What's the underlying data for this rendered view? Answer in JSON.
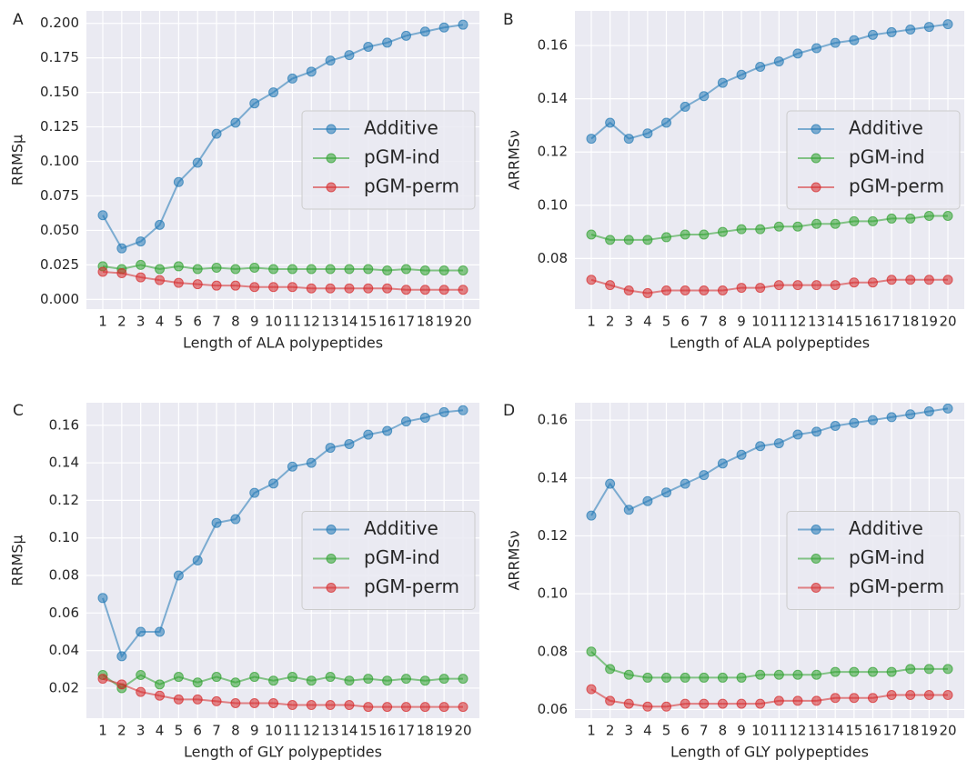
{
  "chart_data": [
    {
      "type": "line",
      "panel_label": "A",
      "xlabel": "Length of ALA polypeptides",
      "ylabel": "RRMSμ",
      "categories": [
        "1",
        "2",
        "3",
        "4",
        "5",
        "6",
        "7",
        "8",
        "9",
        "10",
        "11",
        "12",
        "13",
        "14",
        "15",
        "16",
        "17",
        "18",
        "19",
        "20"
      ],
      "series": [
        {
          "name": "Additive",
          "color": "#1f77b4",
          "values": [
            0.061,
            0.037,
            0.042,
            0.054,
            0.085,
            0.099,
            0.12,
            0.128,
            0.142,
            0.15,
            0.16,
            0.165,
            0.173,
            0.177,
            0.183,
            0.186,
            0.191,
            0.194,
            0.197,
            0.199
          ]
        },
        {
          "name": "pGM-ind",
          "color": "#2ca02c",
          "values": [
            0.024,
            0.022,
            0.025,
            0.022,
            0.024,
            0.022,
            0.023,
            0.022,
            0.023,
            0.022,
            0.022,
            0.022,
            0.022,
            0.022,
            0.022,
            0.021,
            0.022,
            0.021,
            0.021,
            0.021
          ]
        },
        {
          "name": "pGM-perm",
          "color": "#d62728",
          "values": [
            0.02,
            0.019,
            0.016,
            0.014,
            0.012,
            0.011,
            0.01,
            0.01,
            0.009,
            0.009,
            0.009,
            0.008,
            0.008,
            0.008,
            0.008,
            0.008,
            0.007,
            0.007,
            0.007,
            0.007
          ]
        }
      ],
      "ylim": [
        -0.007,
        0.209
      ],
      "yticks": [
        {
          "value": 0,
          "label": "0.000"
        },
        0.025,
        {
          "value": 0.05,
          "label": "0.050"
        },
        0.075,
        {
          "value": 0.1,
          "label": "0.100"
        },
        0.125,
        {
          "value": 0.15,
          "label": "0.150"
        },
        0.175,
        {
          "value": 0.2,
          "label": "0.200"
        }
      ],
      "grid": true,
      "legend": "center right"
    },
    {
      "type": "line",
      "panel_label": "B",
      "xlabel": "Length of ALA polypeptides",
      "ylabel": "ARRMSν",
      "categories": [
        "1",
        "2",
        "3",
        "4",
        "5",
        "6",
        "7",
        "8",
        "9",
        "10",
        "11",
        "12",
        "13",
        "14",
        "15",
        "16",
        "17",
        "18",
        "19",
        "20"
      ],
      "series": [
        {
          "name": "Additive",
          "color": "#1f77b4",
          "values": [
            0.125,
            0.131,
            0.125,
            0.127,
            0.131,
            0.137,
            0.141,
            0.146,
            0.149,
            0.152,
            0.154,
            0.157,
            0.159,
            0.161,
            0.162,
            0.164,
            0.165,
            0.166,
            0.167,
            0.168
          ]
        },
        {
          "name": "pGM-ind",
          "color": "#2ca02c",
          "values": [
            0.089,
            0.087,
            0.087,
            0.087,
            0.088,
            0.089,
            0.089,
            0.09,
            0.091,
            0.091,
            0.092,
            0.092,
            0.093,
            0.093,
            0.094,
            0.094,
            0.095,
            0.095,
            0.096,
            0.096
          ]
        },
        {
          "name": "pGM-perm",
          "color": "#d62728",
          "values": [
            0.072,
            0.07,
            0.068,
            0.067,
            0.068,
            0.068,
            0.068,
            0.068,
            0.069,
            0.069,
            0.07,
            0.07,
            0.07,
            0.07,
            0.071,
            0.071,
            0.072,
            0.072,
            0.072,
            0.072
          ]
        }
      ],
      "ylim": [
        0.061,
        0.173
      ],
      "yticks": [
        0.08,
        {
          "value": 0.1,
          "label": "0.10"
        },
        0.12,
        0.14,
        0.16
      ],
      "grid": true,
      "legend": "center right"
    },
    {
      "type": "line",
      "panel_label": "C",
      "xlabel": "Length of GLY polypeptides",
      "ylabel": "RRMSμ",
      "categories": [
        "1",
        "2",
        "3",
        "4",
        "5",
        "6",
        "7",
        "8",
        "9",
        "10",
        "11",
        "12",
        "13",
        "14",
        "15",
        "16",
        "17",
        "18",
        "19",
        "20"
      ],
      "series": [
        {
          "name": "Additive",
          "color": "#1f77b4",
          "values": [
            0.068,
            0.037,
            0.05,
            0.05,
            0.08,
            0.088,
            0.108,
            0.11,
            0.124,
            0.129,
            0.138,
            0.14,
            0.148,
            0.15,
            0.155,
            0.157,
            0.162,
            0.164,
            0.167,
            0.168
          ]
        },
        {
          "name": "pGM-ind",
          "color": "#2ca02c",
          "values": [
            0.027,
            0.02,
            0.027,
            0.022,
            0.026,
            0.023,
            0.026,
            0.023,
            0.026,
            0.024,
            0.026,
            0.024,
            0.026,
            0.024,
            0.025,
            0.024,
            0.025,
            0.024,
            0.025,
            0.025
          ]
        },
        {
          "name": "pGM-perm",
          "color": "#d62728",
          "values": [
            0.025,
            0.022,
            0.018,
            0.016,
            0.014,
            0.014,
            0.013,
            0.012,
            0.012,
            0.012,
            0.011,
            0.011,
            0.011,
            0.011,
            0.01,
            0.01,
            0.01,
            0.01,
            0.01,
            0.01
          ]
        }
      ],
      "ylim": [
        0.004,
        0.172
      ],
      "yticks": [
        0.02,
        0.04,
        0.06,
        0.08,
        {
          "value": 0.1,
          "label": "0.10"
        },
        0.12,
        0.14,
        0.16
      ],
      "grid": true,
      "legend": "center right"
    },
    {
      "type": "line",
      "panel_label": "D",
      "xlabel": "Length of GLY polypeptides",
      "ylabel": "ARRMSν",
      "categories": [
        "1",
        "2",
        "3",
        "4",
        "5",
        "6",
        "7",
        "8",
        "9",
        "10",
        "11",
        "12",
        "13",
        "14",
        "15",
        "16",
        "17",
        "18",
        "19",
        "20"
      ],
      "series": [
        {
          "name": "Additive",
          "color": "#1f77b4",
          "values": [
            0.127,
            0.138,
            0.129,
            0.132,
            0.135,
            0.138,
            0.141,
            0.145,
            0.148,
            0.151,
            0.152,
            0.155,
            0.156,
            0.158,
            0.159,
            0.16,
            0.161,
            0.162,
            0.163,
            0.164
          ]
        },
        {
          "name": "pGM-ind",
          "color": "#2ca02c",
          "values": [
            0.08,
            0.074,
            0.072,
            0.071,
            0.071,
            0.071,
            0.071,
            0.071,
            0.071,
            0.072,
            0.072,
            0.072,
            0.072,
            0.073,
            0.073,
            0.073,
            0.073,
            0.074,
            0.074,
            0.074
          ]
        },
        {
          "name": "pGM-perm",
          "color": "#d62728",
          "values": [
            0.067,
            0.063,
            0.062,
            0.061,
            0.061,
            0.062,
            0.062,
            0.062,
            0.062,
            0.062,
            0.063,
            0.063,
            0.063,
            0.064,
            0.064,
            0.064,
            0.065,
            0.065,
            0.065,
            0.065
          ]
        }
      ],
      "ylim": [
        0.057,
        0.166
      ],
      "yticks": [
        0.06,
        0.08,
        {
          "value": 0.1,
          "label": "0.10"
        },
        0.12,
        0.14,
        0.16
      ],
      "grid": true,
      "legend": "center right"
    }
  ]
}
